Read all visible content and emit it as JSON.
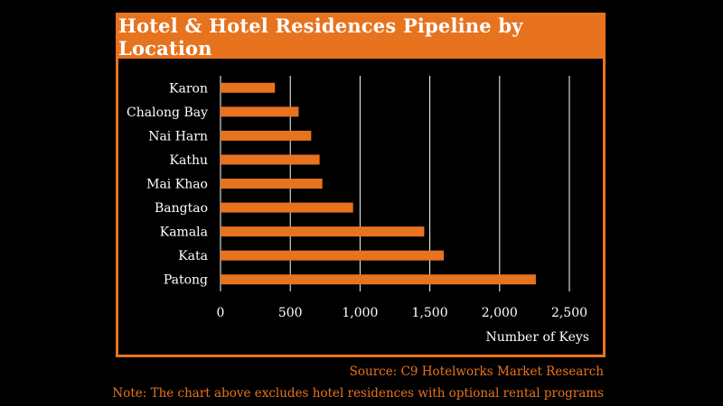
{
  "chart_data": {
    "type": "bar",
    "orientation": "horizontal",
    "title": "Hotel & Hotel Residences Pipeline by Location",
    "xlabel": "Number of Keys",
    "ylabel": "",
    "categories": [
      "Karon",
      "Chalong Bay",
      "Nai Harn",
      "Kathu",
      "Mai Khao",
      "Bangtao",
      "Kamala",
      "Kata",
      "Patong"
    ],
    "values": [
      390,
      560,
      650,
      710,
      730,
      950,
      1460,
      1600,
      2260
    ],
    "xlim": [
      0,
      2500
    ],
    "ticks": [
      0,
      500,
      1000,
      1500,
      2000,
      2500
    ],
    "tick_labels": [
      "0",
      "500",
      "1,000",
      "1,500",
      "2,000",
      "2,500"
    ],
    "grid": "vertical",
    "colors": {
      "bar": "#e8731e",
      "frame": "#e8731e",
      "text": "#ffffff",
      "grid": "#ffffff"
    }
  },
  "footer": {
    "source": "Source: C9 Hotelworks Market Research",
    "note": "Note: The chart above excludes  hotel residences with optional rental programs"
  }
}
